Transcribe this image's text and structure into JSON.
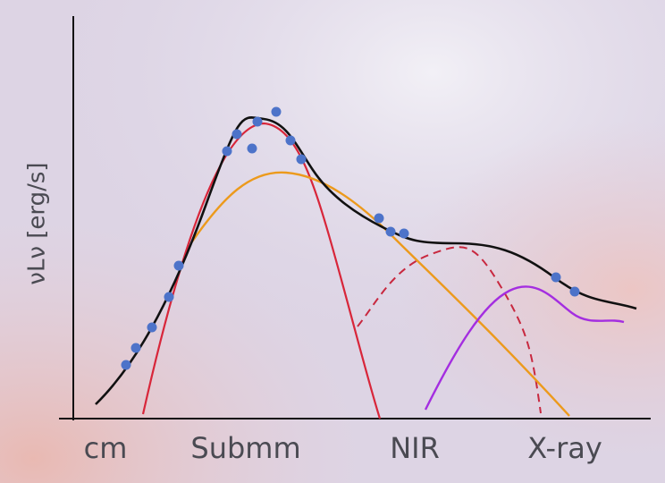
{
  "y_axis_label": "νLν [erg/s]",
  "x_labels": [
    "cm",
    "Submm",
    "NIR",
    "X-ray"
  ]
}
